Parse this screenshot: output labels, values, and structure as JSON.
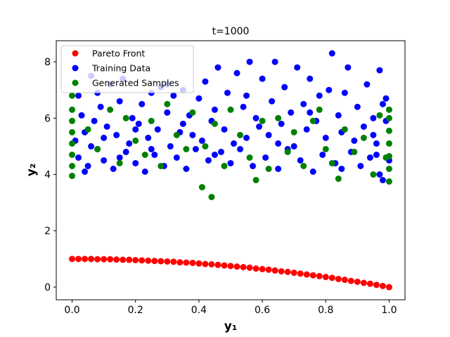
{
  "chart_data": {
    "type": "scatter",
    "title": "t=1000",
    "xlabel": "y₁",
    "ylabel": "y₂",
    "xlim": [
      -0.05,
      1.05
    ],
    "ylim": [
      -0.45,
      8.75
    ],
    "xticks": [
      0.0,
      0.2,
      0.4,
      0.6,
      0.8,
      1.0
    ],
    "xtick_labels": [
      "0.0",
      "0.2",
      "0.4",
      "0.6",
      "0.8",
      "1.0"
    ],
    "yticks": [
      0,
      2,
      4,
      6,
      8
    ],
    "ytick_labels": [
      "0",
      "2",
      "4",
      "6",
      "8"
    ],
    "grid": false,
    "legend_position": "top-left",
    "series": [
      {
        "name": "Pareto Front",
        "color": "#ff0000",
        "points": [
          [
            0.0,
            1.0
          ],
          [
            0.02,
            1.0
          ],
          [
            0.04,
            1.0
          ],
          [
            0.06,
            1.0
          ],
          [
            0.08,
            0.99
          ],
          [
            0.1,
            0.99
          ],
          [
            0.12,
            0.99
          ],
          [
            0.14,
            0.98
          ],
          [
            0.16,
            0.97
          ],
          [
            0.18,
            0.97
          ],
          [
            0.2,
            0.96
          ],
          [
            0.22,
            0.95
          ],
          [
            0.24,
            0.94
          ],
          [
            0.26,
            0.93
          ],
          [
            0.28,
            0.92
          ],
          [
            0.3,
            0.91
          ],
          [
            0.32,
            0.9
          ],
          [
            0.34,
            0.88
          ],
          [
            0.36,
            0.87
          ],
          [
            0.38,
            0.86
          ],
          [
            0.4,
            0.84
          ],
          [
            0.42,
            0.82
          ],
          [
            0.44,
            0.81
          ],
          [
            0.46,
            0.79
          ],
          [
            0.48,
            0.77
          ],
          [
            0.5,
            0.75
          ],
          [
            0.52,
            0.73
          ],
          [
            0.54,
            0.71
          ],
          [
            0.56,
            0.69
          ],
          [
            0.58,
            0.66
          ],
          [
            0.6,
            0.64
          ],
          [
            0.62,
            0.62
          ],
          [
            0.64,
            0.59
          ],
          [
            0.66,
            0.56
          ],
          [
            0.68,
            0.54
          ],
          [
            0.7,
            0.51
          ],
          [
            0.72,
            0.48
          ],
          [
            0.74,
            0.45
          ],
          [
            0.76,
            0.42
          ],
          [
            0.78,
            0.39
          ],
          [
            0.8,
            0.36
          ],
          [
            0.82,
            0.33
          ],
          [
            0.84,
            0.29
          ],
          [
            0.86,
            0.26
          ],
          [
            0.88,
            0.22
          ],
          [
            0.9,
            0.19
          ],
          [
            0.92,
            0.15
          ],
          [
            0.94,
            0.12
          ],
          [
            0.96,
            0.08
          ],
          [
            0.98,
            0.04
          ],
          [
            1.0,
            0.0
          ]
        ]
      },
      {
        "name": "Training Data",
        "color": "#0000ff",
        "points": [
          [
            0.01,
            5.2
          ],
          [
            0.02,
            4.6
          ],
          [
            0.03,
            6.1
          ],
          [
            0.04,
            5.5
          ],
          [
            0.05,
            4.3
          ],
          [
            0.06,
            7.5
          ],
          [
            0.07,
            5.9
          ],
          [
            0.08,
            4.9
          ],
          [
            0.09,
            6.4
          ],
          [
            0.1,
            4.5
          ],
          [
            0.11,
            5.7
          ],
          [
            0.12,
            7.2
          ],
          [
            0.13,
            4.2
          ],
          [
            0.14,
            5.4
          ],
          [
            0.15,
            6.6
          ],
          [
            0.16,
            7.4
          ],
          [
            0.17,
            4.8
          ],
          [
            0.18,
            5.1
          ],
          [
            0.19,
            6.0
          ],
          [
            0.2,
            4.4
          ],
          [
            0.21,
            5.8
          ],
          [
            0.22,
            6.5
          ],
          [
            0.23,
            4.1
          ],
          [
            0.24,
            5.3
          ],
          [
            0.25,
            6.9
          ],
          [
            0.26,
            4.7
          ],
          [
            0.27,
            5.6
          ],
          [
            0.28,
            7.1
          ],
          [
            0.29,
            4.3
          ],
          [
            0.3,
            6.2
          ],
          [
            0.31,
            5.0
          ],
          [
            0.32,
            6.8
          ],
          [
            0.33,
            4.6
          ],
          [
            0.34,
            5.5
          ],
          [
            0.35,
            7.0
          ],
          [
            0.36,
            4.2
          ],
          [
            0.37,
            6.1
          ],
          [
            0.38,
            5.4
          ],
          [
            0.39,
            4.9
          ],
          [
            0.4,
            6.7
          ],
          [
            0.41,
            5.2
          ],
          [
            0.42,
            7.3
          ],
          [
            0.43,
            4.5
          ],
          [
            0.44,
            5.9
          ],
          [
            0.45,
            6.3
          ],
          [
            0.46,
            7.8
          ],
          [
            0.47,
            4.8
          ],
          [
            0.48,
            5.6
          ],
          [
            0.49,
            6.9
          ],
          [
            0.5,
            4.4
          ],
          [
            0.51,
            5.1
          ],
          [
            0.52,
            7.6
          ],
          [
            0.53,
            4.9
          ],
          [
            0.54,
            6.4
          ],
          [
            0.55,
            5.3
          ],
          [
            0.56,
            8.0
          ],
          [
            0.57,
            4.3
          ],
          [
            0.58,
            6.0
          ],
          [
            0.59,
            5.7
          ],
          [
            0.6,
            7.4
          ],
          [
            0.61,
            4.6
          ],
          [
            0.62,
            5.4
          ],
          [
            0.63,
            6.6
          ],
          [
            0.64,
            8.0
          ],
          [
            0.65,
            4.2
          ],
          [
            0.66,
            5.8
          ],
          [
            0.67,
            7.1
          ],
          [
            0.68,
            4.9
          ],
          [
            0.69,
            6.2
          ],
          [
            0.7,
            5.0
          ],
          [
            0.71,
            7.8
          ],
          [
            0.72,
            4.5
          ],
          [
            0.73,
            6.5
          ],
          [
            0.74,
            5.6
          ],
          [
            0.75,
            7.4
          ],
          [
            0.76,
            4.1
          ],
          [
            0.77,
            5.9
          ],
          [
            0.78,
            6.8
          ],
          [
            0.79,
            4.7
          ],
          [
            0.8,
            5.3
          ],
          [
            0.81,
            7.0
          ],
          [
            0.82,
            8.3
          ],
          [
            0.83,
            4.4
          ],
          [
            0.84,
            6.1
          ],
          [
            0.85,
            5.5
          ],
          [
            0.86,
            6.9
          ],
          [
            0.87,
            7.8
          ],
          [
            0.88,
            4.8
          ],
          [
            0.89,
            5.2
          ],
          [
            0.9,
            6.4
          ],
          [
            0.91,
            4.3
          ],
          [
            0.92,
            5.7
          ],
          [
            0.93,
            7.2
          ],
          [
            0.94,
            4.6
          ],
          [
            0.95,
            6.0
          ],
          [
            0.96,
            5.1
          ],
          [
            0.97,
            7.7
          ],
          [
            0.98,
            3.8
          ],
          [
            0.99,
            6.7
          ],
          [
            1.0,
            4.5
          ],
          [
            0.02,
            6.8
          ],
          [
            0.04,
            4.1
          ],
          [
            0.06,
            5.0
          ],
          [
            0.08,
            6.9
          ],
          [
            0.1,
            5.3
          ],
          [
            0.15,
            4.6
          ],
          [
            0.2,
            5.6
          ],
          [
            0.25,
            4.9
          ],
          [
            0.3,
            7.2
          ],
          [
            0.35,
            5.8
          ],
          [
            0.45,
            4.7
          ],
          [
            0.55,
            6.8
          ],
          [
            0.65,
            5.1
          ],
          [
            0.75,
            6.2
          ],
          [
            0.85,
            4.2
          ],
          [
            0.95,
            5.4
          ],
          [
            0.97,
            4.0
          ],
          [
            0.99,
            5.9
          ],
          [
            0.98,
            6.5
          ],
          [
            0.96,
            4.7
          ]
        ]
      },
      {
        "name": "Generated Samples",
        "color": "#008000",
        "points": [
          [
            0.0,
            3.95
          ],
          [
            0.0,
            4.3
          ],
          [
            0.0,
            4.7
          ],
          [
            0.0,
            5.1
          ],
          [
            0.0,
            5.5
          ],
          [
            0.0,
            5.9
          ],
          [
            0.0,
            6.3
          ],
          [
            0.0,
            6.8
          ],
          [
            0.05,
            5.6
          ],
          [
            0.08,
            4.9
          ],
          [
            0.12,
            6.3
          ],
          [
            0.15,
            4.4
          ],
          [
            0.17,
            6.0
          ],
          [
            0.2,
            5.2
          ],
          [
            0.23,
            4.7
          ],
          [
            0.25,
            5.9
          ],
          [
            0.28,
            4.3
          ],
          [
            0.3,
            6.5
          ],
          [
            0.33,
            5.4
          ],
          [
            0.36,
            4.9
          ],
          [
            0.38,
            6.2
          ],
          [
            0.41,
            3.55
          ],
          [
            0.42,
            5.0
          ],
          [
            0.44,
            3.2
          ],
          [
            0.45,
            5.8
          ],
          [
            0.48,
            4.3
          ],
          [
            0.5,
            6.3
          ],
          [
            0.53,
            5.4
          ],
          [
            0.56,
            4.6
          ],
          [
            0.58,
            3.8
          ],
          [
            0.6,
            5.9
          ],
          [
            0.62,
            4.2
          ],
          [
            0.65,
            6.0
          ],
          [
            0.68,
            4.8
          ],
          [
            0.7,
            5.5
          ],
          [
            0.73,
            4.3
          ],
          [
            0.76,
            5.9
          ],
          [
            0.78,
            6.3
          ],
          [
            0.8,
            4.9
          ],
          [
            0.82,
            4.4
          ],
          [
            0.84,
            3.85
          ],
          [
            0.86,
            5.6
          ],
          [
            0.89,
            4.8
          ],
          [
            0.92,
            5.3
          ],
          [
            0.95,
            4.0
          ],
          [
            0.97,
            6.1
          ],
          [
            0.99,
            4.6
          ],
          [
            1.0,
            3.75
          ],
          [
            1.0,
            4.2
          ],
          [
            1.0,
            4.65
          ],
          [
            1.0,
            5.1
          ],
          [
            1.0,
            5.55
          ],
          [
            1.0,
            6.0
          ],
          [
            1.0,
            6.3
          ]
        ]
      }
    ]
  }
}
